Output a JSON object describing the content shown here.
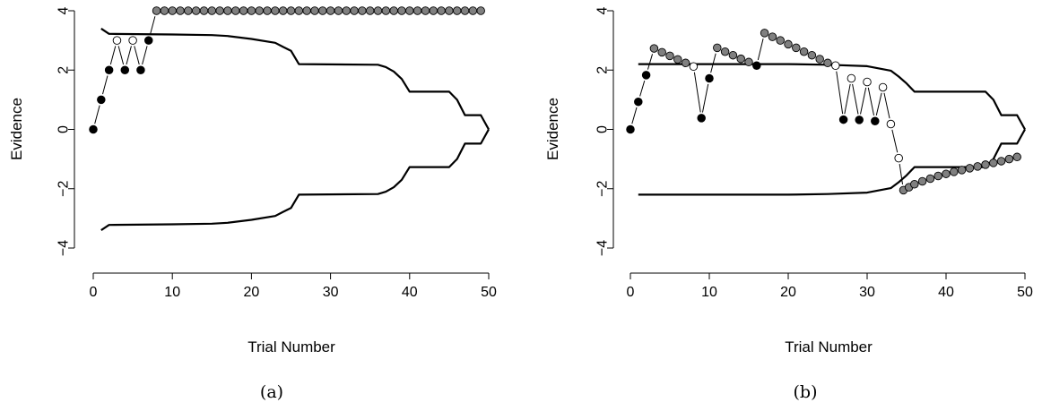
{
  "chart_data": [
    {
      "type": "scatter",
      "panel_label": "(a)",
      "xlabel": "Trial Number",
      "ylabel": "Evidence",
      "xlim": [
        0,
        50
      ],
      "ylim": [
        -4,
        4
      ],
      "xticks": [
        0,
        10,
        20,
        30,
        40,
        50
      ],
      "yticks": [
        -4,
        -2,
        0,
        2,
        4
      ],
      "boundary_upper": {
        "x": [
          1,
          2,
          10,
          15,
          17,
          20,
          23,
          24,
          25,
          26,
          36,
          37,
          38,
          39,
          40,
          45,
          46,
          47,
          49,
          50
        ],
        "y": [
          3.4,
          3.22,
          3.2,
          3.18,
          3.15,
          3.05,
          2.92,
          2.78,
          2.65,
          2.2,
          2.18,
          2.1,
          1.95,
          1.7,
          1.27,
          1.27,
          1.0,
          0.48,
          0.48,
          0
        ]
      },
      "boundary_lower": {
        "x": [
          1,
          2,
          10,
          15,
          17,
          20,
          23,
          24,
          25,
          26,
          36,
          37,
          38,
          39,
          40,
          45,
          46,
          47,
          49,
          50
        ],
        "y": [
          -3.4,
          -3.22,
          -3.2,
          -3.18,
          -3.15,
          -3.05,
          -2.92,
          -2.78,
          -2.65,
          -2.2,
          -2.18,
          -2.1,
          -1.95,
          -1.7,
          -1.27,
          -1.27,
          -1.0,
          -0.48,
          -0.48,
          0
        ]
      },
      "points": [
        {
          "x": 0,
          "y": 0,
          "kind": "black"
        },
        {
          "x": 1,
          "y": 1,
          "kind": "black"
        },
        {
          "x": 2,
          "y": 2,
          "kind": "black"
        },
        {
          "x": 3,
          "y": 3,
          "kind": "white"
        },
        {
          "x": 4,
          "y": 2,
          "kind": "black"
        },
        {
          "x": 5,
          "y": 3,
          "kind": "white"
        },
        {
          "x": 6,
          "y": 2,
          "kind": "black"
        },
        {
          "x": 7,
          "y": 3,
          "kind": "black"
        },
        {
          "x": 8,
          "y": 4,
          "kind": "gray"
        },
        {
          "x": 9,
          "y": 4,
          "kind": "gray"
        },
        {
          "x": 10,
          "y": 4,
          "kind": "gray"
        },
        {
          "x": 11,
          "y": 4,
          "kind": "gray"
        },
        {
          "x": 12,
          "y": 4,
          "kind": "gray"
        },
        {
          "x": 13,
          "y": 4,
          "kind": "gray"
        },
        {
          "x": 14,
          "y": 4,
          "kind": "gray"
        },
        {
          "x": 15,
          "y": 4,
          "kind": "gray"
        },
        {
          "x": 16,
          "y": 4,
          "kind": "gray"
        },
        {
          "x": 17,
          "y": 4,
          "kind": "gray"
        },
        {
          "x": 18,
          "y": 4,
          "kind": "gray"
        },
        {
          "x": 19,
          "y": 4,
          "kind": "gray"
        },
        {
          "x": 20,
          "y": 4,
          "kind": "gray"
        },
        {
          "x": 21,
          "y": 4,
          "kind": "gray"
        },
        {
          "x": 22,
          "y": 4,
          "kind": "gray"
        },
        {
          "x": 23,
          "y": 4,
          "kind": "gray"
        },
        {
          "x": 24,
          "y": 4,
          "kind": "gray"
        },
        {
          "x": 25,
          "y": 4,
          "kind": "gray"
        },
        {
          "x": 26,
          "y": 4,
          "kind": "gray"
        },
        {
          "x": 27,
          "y": 4,
          "kind": "gray"
        },
        {
          "x": 28,
          "y": 4,
          "kind": "gray"
        },
        {
          "x": 29,
          "y": 4,
          "kind": "gray"
        },
        {
          "x": 30,
          "y": 4,
          "kind": "gray"
        },
        {
          "x": 31,
          "y": 4,
          "kind": "gray"
        },
        {
          "x": 32,
          "y": 4,
          "kind": "gray"
        },
        {
          "x": 33,
          "y": 4,
          "kind": "gray"
        },
        {
          "x": 34,
          "y": 4,
          "kind": "gray"
        },
        {
          "x": 35,
          "y": 4,
          "kind": "gray"
        },
        {
          "x": 36,
          "y": 4,
          "kind": "gray"
        },
        {
          "x": 37,
          "y": 4,
          "kind": "gray"
        },
        {
          "x": 38,
          "y": 4,
          "kind": "gray"
        },
        {
          "x": 39,
          "y": 4,
          "kind": "gray"
        },
        {
          "x": 40,
          "y": 4,
          "kind": "gray"
        },
        {
          "x": 41,
          "y": 4,
          "kind": "gray"
        },
        {
          "x": 42,
          "y": 4,
          "kind": "gray"
        },
        {
          "x": 43,
          "y": 4,
          "kind": "gray"
        },
        {
          "x": 44,
          "y": 4,
          "kind": "gray"
        },
        {
          "x": 45,
          "y": 4,
          "kind": "gray"
        },
        {
          "x": 46,
          "y": 4,
          "kind": "gray"
        },
        {
          "x": 47,
          "y": 4,
          "kind": "gray"
        },
        {
          "x": 48,
          "y": 4,
          "kind": "gray"
        },
        {
          "x": 49,
          "y": 4,
          "kind": "gray"
        }
      ],
      "connected_through_x": 8
    },
    {
      "type": "scatter",
      "panel_label": "(b)",
      "xlabel": "Trial Number",
      "ylabel": "Evidence",
      "xlim": [
        0,
        50
      ],
      "ylim": [
        -4,
        4
      ],
      "xticks": [
        0,
        10,
        20,
        30,
        40,
        50
      ],
      "yticks": [
        -4,
        -2,
        0,
        2,
        4
      ],
      "boundary_upper": {
        "x": [
          1,
          20,
          25,
          30,
          33,
          34,
          35,
          36,
          45,
          46,
          47,
          49,
          50
        ],
        "y": [
          2.2,
          2.2,
          2.18,
          2.13,
          1.98,
          1.78,
          1.55,
          1.27,
          1.27,
          1.0,
          0.48,
          0.48,
          0
        ]
      },
      "boundary_lower": {
        "x": [
          1,
          20,
          25,
          30,
          33,
          34,
          35,
          36,
          45,
          46,
          47,
          49,
          50
        ],
        "y": [
          -2.2,
          -2.2,
          -2.18,
          -2.13,
          -1.98,
          -1.78,
          -1.55,
          -1.27,
          -1.27,
          -1.0,
          -0.48,
          -0.48,
          0
        ]
      },
      "points": [
        {
          "x": 0,
          "y": 0,
          "kind": "black"
        },
        {
          "x": 1,
          "y": 0.93,
          "kind": "black"
        },
        {
          "x": 2,
          "y": 1.83,
          "kind": "black"
        },
        {
          "x": 3,
          "y": 2.73,
          "kind": "gray"
        },
        {
          "x": 4,
          "y": 2.6,
          "kind": "gray"
        },
        {
          "x": 5,
          "y": 2.48,
          "kind": "gray"
        },
        {
          "x": 6,
          "y": 2.36,
          "kind": "gray"
        },
        {
          "x": 7,
          "y": 2.24,
          "kind": "gray"
        },
        {
          "x": 8,
          "y": 2.12,
          "kind": "white"
        },
        {
          "x": 9,
          "y": 0.38,
          "kind": "black"
        },
        {
          "x": 10,
          "y": 1.72,
          "kind": "black"
        },
        {
          "x": 11,
          "y": 2.75,
          "kind": "gray"
        },
        {
          "x": 12,
          "y": 2.62,
          "kind": "gray"
        },
        {
          "x": 13,
          "y": 2.5,
          "kind": "gray"
        },
        {
          "x": 14,
          "y": 2.38,
          "kind": "gray"
        },
        {
          "x": 15,
          "y": 2.27,
          "kind": "gray"
        },
        {
          "x": 16,
          "y": 2.15,
          "kind": "black"
        },
        {
          "x": 17,
          "y": 3.25,
          "kind": "gray"
        },
        {
          "x": 18,
          "y": 3.12,
          "kind": "gray"
        },
        {
          "x": 19,
          "y": 3.0,
          "kind": "gray"
        },
        {
          "x": 20,
          "y": 2.87,
          "kind": "gray"
        },
        {
          "x": 21,
          "y": 2.75,
          "kind": "gray"
        },
        {
          "x": 22,
          "y": 2.62,
          "kind": "gray"
        },
        {
          "x": 23,
          "y": 2.5,
          "kind": "gray"
        },
        {
          "x": 24,
          "y": 2.37,
          "kind": "gray"
        },
        {
          "x": 25,
          "y": 2.24,
          "kind": "gray"
        },
        {
          "x": 26,
          "y": 2.15,
          "kind": "white"
        },
        {
          "x": 27,
          "y": 0.33,
          "kind": "black"
        },
        {
          "x": 28,
          "y": 1.72,
          "kind": "white"
        },
        {
          "x": 29,
          "y": 0.32,
          "kind": "black"
        },
        {
          "x": 30,
          "y": 1.6,
          "kind": "white"
        },
        {
          "x": 31,
          "y": 0.28,
          "kind": "black"
        },
        {
          "x": 32,
          "y": 1.42,
          "kind": "white"
        },
        {
          "x": 33,
          "y": 0.18,
          "kind": "white"
        },
        {
          "x": 34,
          "y": -0.97,
          "kind": "white"
        },
        {
          "x": 34.6,
          "y": -2.05,
          "kind": "gray"
        },
        {
          "x": 35.3,
          "y": -1.95,
          "kind": "gray"
        },
        {
          "x": 36,
          "y": -1.85,
          "kind": "gray"
        },
        {
          "x": 37,
          "y": -1.75,
          "kind": "gray"
        },
        {
          "x": 38,
          "y": -1.66,
          "kind": "gray"
        },
        {
          "x": 39,
          "y": -1.57,
          "kind": "gray"
        },
        {
          "x": 40,
          "y": -1.5,
          "kind": "gray"
        },
        {
          "x": 41,
          "y": -1.43,
          "kind": "gray"
        },
        {
          "x": 42,
          "y": -1.37,
          "kind": "gray"
        },
        {
          "x": 43,
          "y": -1.31,
          "kind": "gray"
        },
        {
          "x": 44,
          "y": -1.25,
          "kind": "gray"
        },
        {
          "x": 45,
          "y": -1.19,
          "kind": "gray"
        },
        {
          "x": 46,
          "y": -1.13,
          "kind": "gray"
        },
        {
          "x": 47,
          "y": -1.07,
          "kind": "gray"
        },
        {
          "x": 48,
          "y": -1.0,
          "kind": "gray"
        },
        {
          "x": 49,
          "y": -0.93,
          "kind": "gray"
        }
      ],
      "connected_through_x": 35
    }
  ],
  "colors": {
    "black_point": "#000000",
    "white_point": "#ffffff",
    "gray_point": "#808080",
    "line": "#000000"
  }
}
